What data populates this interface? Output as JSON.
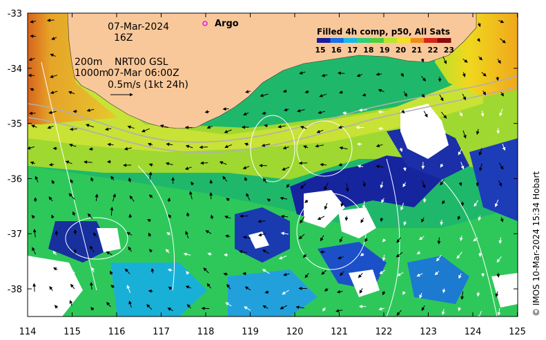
{
  "map": {
    "date": "07-Mar-2024",
    "time": "16Z",
    "contour_200": "200m",
    "contour_1000": "1000m",
    "current_source": "NRT00 GSL",
    "current_time": "07-Mar 06:00Z",
    "scale_text": "0.5m/s (1kt 24h)",
    "argo_label": "Argo",
    "legend_title": "Filled 4h comp, p50, All Sats",
    "colorbar_ticks": [
      "15",
      "16",
      "17",
      "18",
      "19",
      "20",
      "21",
      "22",
      "23"
    ],
    "colorbar_colors": [
      "#1c1c9a",
      "#1a6ee8",
      "#19b7e6",
      "#2fcf7a",
      "#4fcf3a",
      "#b9e62c",
      "#f2e21c",
      "#f28a18",
      "#d82418",
      "#8a0c0c"
    ],
    "credit": "© IMOS 10-Mar-2024 15:34 Hobart",
    "lon_ticks": [
      "114",
      "115",
      "116",
      "117",
      "118",
      "119",
      "120",
      "121",
      "122",
      "123",
      "124",
      "125"
    ],
    "lat_ticks": [
      "-33",
      "-34",
      "-35",
      "-36",
      "-37",
      "-38"
    ],
    "colors": {
      "land": "#f9c89a",
      "argo": "#e020e0"
    }
  }
}
